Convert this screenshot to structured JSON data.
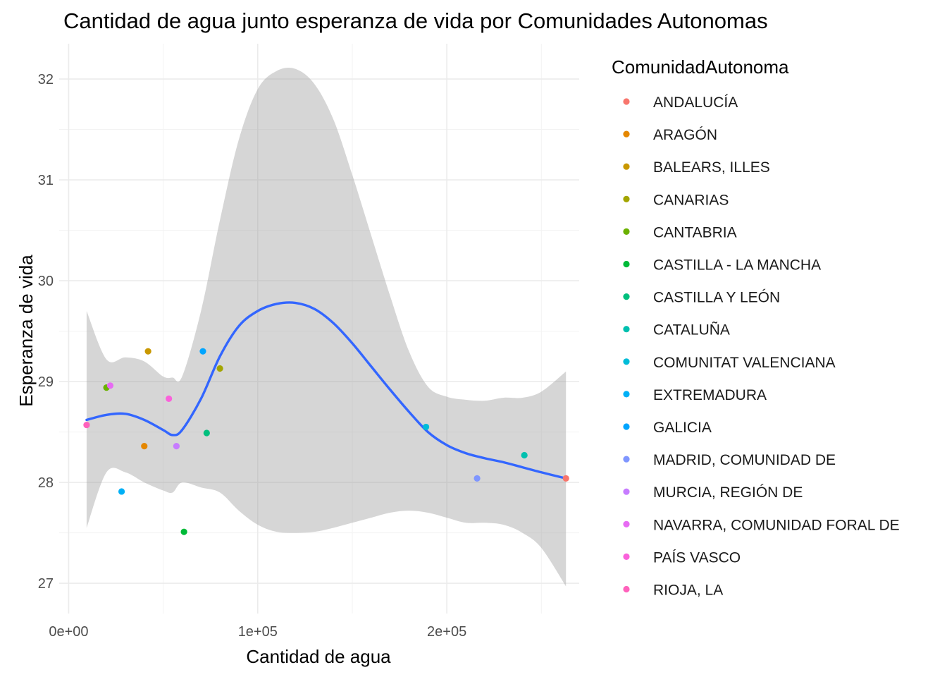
{
  "chart_data": {
    "type": "scatter",
    "title": "Cantidad de agua junto esperanza de vida por Comunidades Autonomas",
    "xlabel": "Cantidad de agua",
    "ylabel": "Esperanza de vida",
    "xlim": [
      -5000,
      270000
    ],
    "ylim": [
      26.7,
      32.35
    ],
    "x_ticks": [
      0,
      100000,
      200000
    ],
    "x_tick_labels": [
      "0e+00",
      "1e+05",
      "2e+05"
    ],
    "y_ticks": [
      27,
      28,
      29,
      30,
      31,
      32
    ],
    "y_tick_labels": [
      "27",
      "28",
      "29",
      "30",
      "31",
      "32"
    ],
    "grid": true,
    "legend": {
      "title": "ComunidadAutonoma",
      "placement": "right",
      "entries": [
        {
          "label": "ANDALUCÍA",
          "color": "#F8766D"
        },
        {
          "label": "ARAGÓN",
          "color": "#E58700"
        },
        {
          "label": "BALEARS, ILLES",
          "color": "#C99800"
        },
        {
          "label": "CANARIAS",
          "color": "#A3A500"
        },
        {
          "label": "CANTABRIA",
          "color": "#6BB100"
        },
        {
          "label": "CASTILLA - LA MANCHA",
          "color": "#00BA38"
        },
        {
          "label": "CASTILLA Y LEÓN",
          "color": "#00BF7D"
        },
        {
          "label": "CATALUÑA",
          "color": "#00C0AF"
        },
        {
          "label": "COMUNITAT VALENCIANA",
          "color": "#00BCD8"
        },
        {
          "label": "EXTREMADURA",
          "color": "#00B0F6"
        },
        {
          "label": "GALICIA",
          "color": "#00A5FF"
        },
        {
          "label": "MADRID, COMUNIDAD DE",
          "color": "#7F96FF"
        },
        {
          "label": "MURCIA, REGIÓN DE",
          "color": "#C77CFF"
        },
        {
          "label": "NAVARRA, COMUNIDAD FORAL DE",
          "color": "#E76BF3"
        },
        {
          "label": "PAÍS VASCO",
          "color": "#FA62DB"
        },
        {
          "label": "RIOJA, LA",
          "color": "#FF62BC"
        }
      ]
    },
    "points": [
      {
        "x": 263000,
        "y": 28.04,
        "color": "#F8766D"
      },
      {
        "x": 40000,
        "y": 28.36,
        "color": "#E58700"
      },
      {
        "x": 42000,
        "y": 29.3,
        "color": "#C99800"
      },
      {
        "x": 80000,
        "y": 29.13,
        "color": "#A3A500"
      },
      {
        "x": 20000,
        "y": 28.94,
        "color": "#6BB100"
      },
      {
        "x": 61000,
        "y": 27.51,
        "color": "#00BA38"
      },
      {
        "x": 73000,
        "y": 28.49,
        "color": "#00BF7D"
      },
      {
        "x": 241000,
        "y": 28.27,
        "color": "#00C0AF"
      },
      {
        "x": 189000,
        "y": 28.55,
        "color": "#00BCD8"
      },
      {
        "x": 28000,
        "y": 27.91,
        "color": "#00B0F6"
      },
      {
        "x": 71000,
        "y": 29.3,
        "color": "#00A5FF"
      },
      {
        "x": 216000,
        "y": 28.04,
        "color": "#7F96FF"
      },
      {
        "x": 57000,
        "y": 28.36,
        "color": "#C77CFF"
      },
      {
        "x": 22000,
        "y": 28.96,
        "color": "#E76BF3"
      },
      {
        "x": 53000,
        "y": 28.83,
        "color": "#FA62DB"
      },
      {
        "x": 9500,
        "y": 28.57,
        "color": "#FF62BC"
      }
    ],
    "smooth": {
      "color": "#3366FF",
      "band_color": "#999999",
      "x": [
        9500,
        20000,
        30000,
        40000,
        50000,
        55000,
        60000,
        70000,
        80000,
        90000,
        100000,
        110000,
        120000,
        130000,
        140000,
        150000,
        160000,
        170000,
        180000,
        190000,
        200000,
        210000,
        220000,
        230000,
        240000,
        250000,
        263000
      ],
      "y": [
        28.62,
        28.67,
        28.68,
        28.62,
        28.52,
        28.47,
        28.52,
        28.83,
        29.25,
        29.55,
        29.7,
        29.77,
        29.78,
        29.72,
        29.58,
        29.38,
        29.15,
        28.92,
        28.7,
        28.5,
        28.37,
        28.29,
        28.24,
        28.2,
        28.15,
        28.1,
        28.04
      ],
      "lower": [
        27.55,
        28.1,
        28.1,
        28.0,
        27.92,
        27.9,
        28.0,
        27.95,
        27.9,
        27.72,
        27.58,
        27.51,
        27.5,
        27.51,
        27.55,
        27.6,
        27.65,
        27.7,
        27.72,
        27.7,
        27.65,
        27.6,
        27.6,
        27.58,
        27.5,
        27.35,
        26.97
      ],
      "upper": [
        29.7,
        29.22,
        29.24,
        29.2,
        29.05,
        29.04,
        29.05,
        29.7,
        30.6,
        31.4,
        31.9,
        32.08,
        32.1,
        31.95,
        31.6,
        31.05,
        30.45,
        29.85,
        29.3,
        28.95,
        28.85,
        28.82,
        28.81,
        28.84,
        28.84,
        28.9,
        29.1
      ]
    }
  }
}
